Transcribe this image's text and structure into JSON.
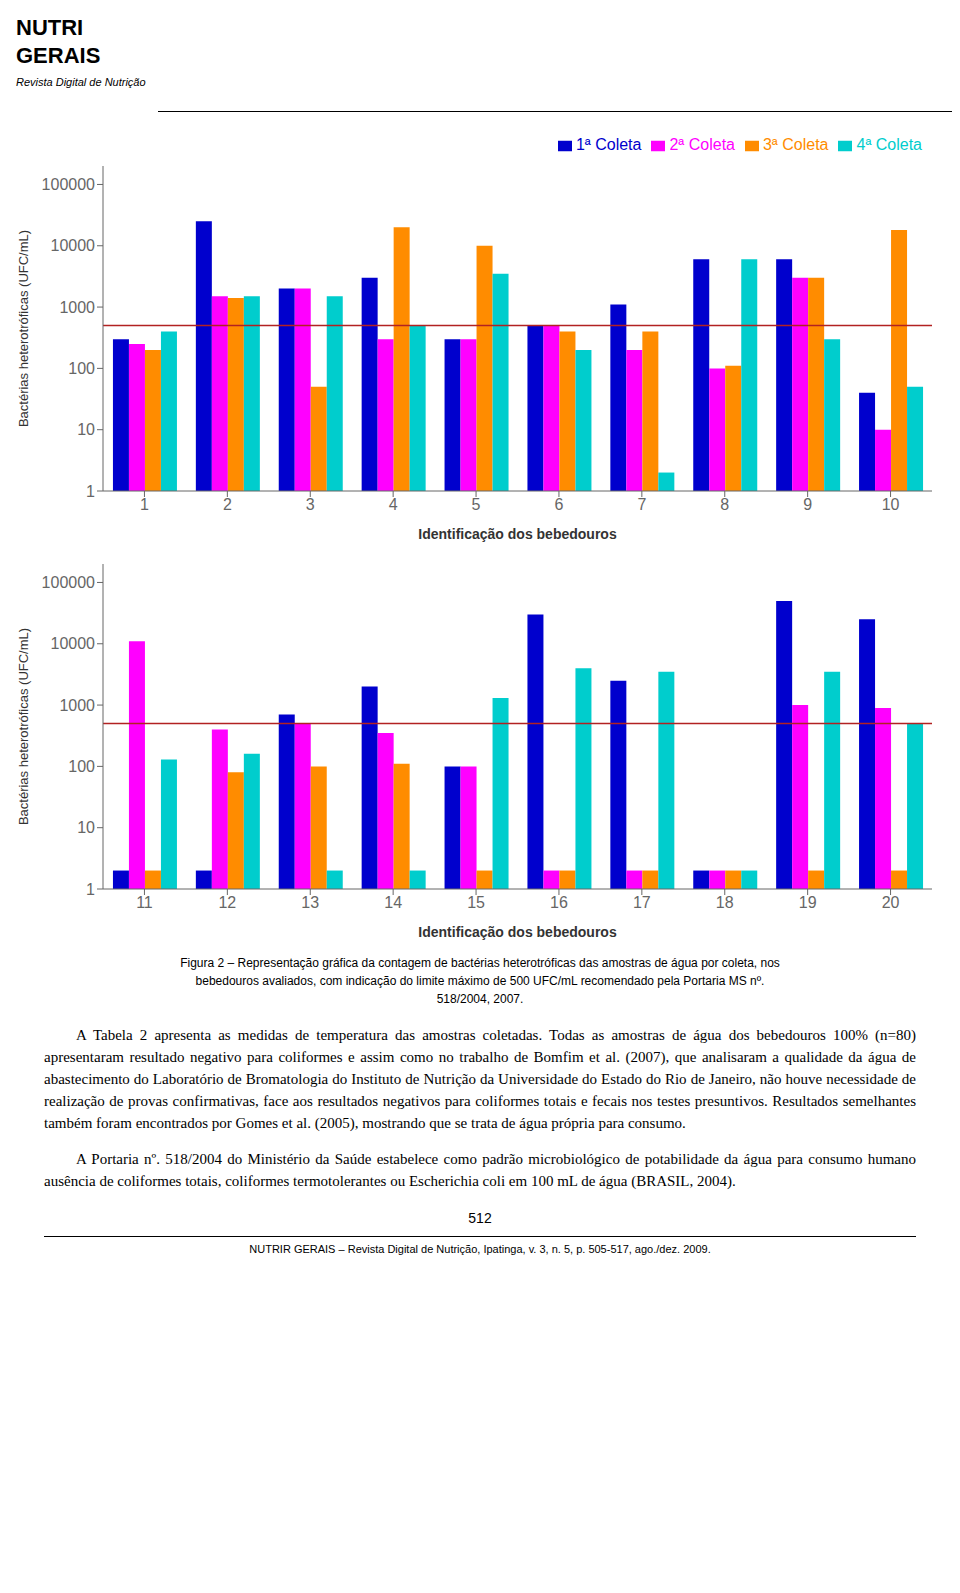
{
  "chart_data": [
    {
      "type": "bar",
      "categories": [
        "1",
        "2",
        "3",
        "4",
        "5",
        "6",
        "7",
        "8",
        "9",
        "10"
      ],
      "series": [
        {
          "name": "1ª Coleta",
          "color": "#0000CD",
          "values": [
            300,
            25000,
            2000,
            3000,
            300,
            500,
            1100,
            6000,
            6000,
            40
          ]
        },
        {
          "name": "2ª Coleta",
          "color": "#FF00FF",
          "values": [
            250,
            1500,
            2000,
            300,
            300,
            500,
            200,
            100,
            3000,
            10
          ]
        },
        {
          "name": "3ª Coleta",
          "color": "#FF8C00",
          "values": [
            200,
            1400,
            50,
            20000,
            10000,
            400,
            400,
            110,
            3000,
            18000
          ]
        },
        {
          "name": "4ª Coleta",
          "color": "#00CDCD",
          "values": [
            400,
            1500,
            1500,
            500,
            3500,
            200,
            2,
            6000,
            300,
            50
          ]
        }
      ],
      "xlabel": "Identificação dos bebedouros",
      "ylabel": "Bactérias heterotróficas (UFC/mL)",
      "log": "y",
      "ylim": [
        1,
        200000
      ],
      "yticks": [
        1,
        10,
        100,
        1000,
        10000,
        100000
      ],
      "grid": false,
      "legend": "upper right",
      "reference_line": {
        "value": 500,
        "color": "#B22222"
      }
    },
    {
      "type": "bar",
      "categories": [
        "11",
        "12",
        "13",
        "14",
        "15",
        "16",
        "17",
        "18",
        "19",
        "20"
      ],
      "series": [
        {
          "name": "1ª Coleta",
          "color": "#0000CD",
          "values": [
            2,
            2,
            700,
            2000,
            100,
            30000,
            2500,
            2,
            50000,
            25000
          ]
        },
        {
          "name": "2ª Coleta",
          "color": "#FF00FF",
          "values": [
            11000,
            400,
            500,
            350,
            100,
            2,
            2,
            2,
            1000,
            900
          ]
        },
        {
          "name": "3ª Coleta",
          "color": "#FF8C00",
          "values": [
            2,
            80,
            100,
            110,
            2,
            2,
            2,
            2,
            2,
            2
          ]
        },
        {
          "name": "4ª Coleta",
          "color": "#00CDCD",
          "values": [
            130,
            160,
            2,
            2,
            1300,
            4000,
            3500,
            2,
            3500,
            500
          ]
        }
      ],
      "xlabel": "Identificação dos bebedouros",
      "ylabel": "Bactérias heterotróficas (UFC/mL)",
      "log": "y",
      "ylim": [
        1,
        200000
      ],
      "yticks": [
        1,
        10,
        100,
        1000,
        10000,
        100000
      ],
      "grid": false,
      "reference_line": {
        "value": 500,
        "color": "#B22222"
      }
    }
  ],
  "header": [
    "NUTRI",
    "GERAIS",
    "Revista Digital de Nutrição"
  ],
  "caption": [
    "Figura 2 – Representação gráfica da contagem de bactérias heterotróficas das amostras de água por coleta, nos",
    "bebedouros avaliados, com indicação do limite máximo de 500 UFC/mL recomendado pela Portaria MS nº.",
    "518/2004, 2007."
  ],
  "body": [
    "A Tabela 2 apresenta as medidas de temperatura das amostras coletadas. Todas as amostras de água dos bebedouros 100% (n=80) apresentaram resultado negativo para coliformes e assim como no trabalho de Bomfim et al. (2007), que analisaram a qualidade da água de abastecimento do Laboratório de Bromatologia do Instituto de Nutrição da Universidade do Estado do Rio de Janeiro, não houve necessidade de realização de provas confirmativas, face aos resultados negativos para coliformes totais e fecais nos testes presuntivos. Resultados semelhantes também foram encontrados por Gomes et al. (2005), mostrando que se trata de água própria para consumo.",
    "A Portaria nº. 518/2004 do Ministério da Saúde estabelece como padrão microbiológico de potabilidade da água para consumo humano ausência de coliformes totais, coliformes termotolerantes ou Escherichia coli em 100 mL de água (BRASIL, 2004)."
  ],
  "page_number": "512",
  "footer": "NUTRIR GERAIS – Revista Digital de Nutrição, Ipatinga, v. 3, n. 5, p. 505-517, ago./dez. 2009."
}
